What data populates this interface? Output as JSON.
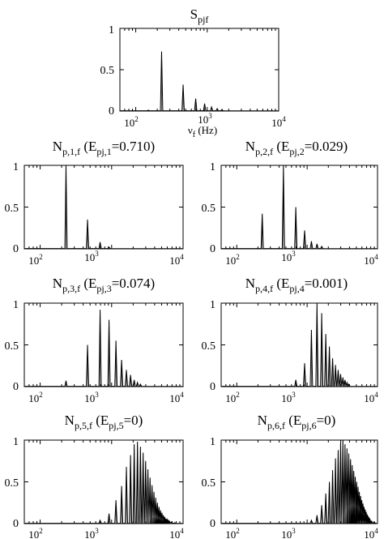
{
  "chart_data": [
    {
      "type": "line",
      "title_main": "S",
      "title_sub": "pjf",
      "title_rest": "",
      "xlabel_main": "ν",
      "xlabel_sub": "f",
      "xlabel_rest": " (Hz)",
      "xscale": "log",
      "xlim": [
        60,
        10000
      ],
      "ylim": [
        0,
        1
      ],
      "xticks": [
        {
          "base": "10",
          "exp": "2"
        },
        {
          "base": "10",
          "exp": "3"
        },
        {
          "base": "10",
          "exp": "4"
        }
      ],
      "yticks": [
        "0",
        "0.5",
        "1"
      ],
      "peaks": [
        {
          "freq": 150,
          "amp": 0.01
        },
        {
          "freq": 230,
          "amp": 0.72
        },
        {
          "freq": 460,
          "amp": 0.32
        },
        {
          "freq": 690,
          "amp": 0.15
        },
        {
          "freq": 920,
          "amp": 0.09
        },
        {
          "freq": 1150,
          "amp": 0.05
        },
        {
          "freq": 1380,
          "amp": 0.03
        },
        {
          "freq": 1610,
          "amp": 0.02
        }
      ]
    },
    {
      "type": "line",
      "title_main": "N",
      "title_sub": "p,1,f",
      "title_rest": " (E",
      "title_sub2": "pj,1",
      "title_end": "=0.710)",
      "xscale": "log",
      "xlim": [
        60,
        10000
      ],
      "ylim": [
        0,
        1
      ],
      "xticks": [
        {
          "base": "10",
          "exp": "2"
        },
        {
          "base": "10",
          "exp": "3"
        },
        {
          "base": "10",
          "exp": "4"
        }
      ],
      "yticks": [
        "0",
        "0.5",
        "1"
      ],
      "peaks": [
        {
          "freq": 230,
          "amp": 1.0
        },
        {
          "freq": 460,
          "amp": 0.35
        },
        {
          "freq": 690,
          "amp": 0.08
        },
        {
          "freq": 920,
          "amp": 0.02
        }
      ]
    },
    {
      "type": "line",
      "title_main": "N",
      "title_sub": "p,2,f",
      "title_rest": " (E",
      "title_sub2": "pj,2",
      "title_end": "=0.029)",
      "xscale": "log",
      "xlim": [
        60,
        10000
      ],
      "ylim": [
        0,
        1
      ],
      "xticks": [
        {
          "base": "10",
          "exp": "2"
        },
        {
          "base": "10",
          "exp": "3"
        },
        {
          "base": "10",
          "exp": "4"
        }
      ],
      "yticks": [
        "0",
        "0.5",
        "1"
      ],
      "peaks": [
        {
          "freq": 230,
          "amp": 0.42
        },
        {
          "freq": 460,
          "amp": 1.0
        },
        {
          "freq": 690,
          "amp": 0.5
        },
        {
          "freq": 920,
          "amp": 0.22
        },
        {
          "freq": 1150,
          "amp": 0.09
        },
        {
          "freq": 1380,
          "amp": 0.06
        },
        {
          "freq": 1610,
          "amp": 0.03
        }
      ]
    },
    {
      "type": "line",
      "title_main": "N",
      "title_sub": "p,3,f",
      "title_rest": " (E",
      "title_sub2": "pj,3",
      "title_end": "=0.074)",
      "xscale": "log",
      "xlim": [
        60,
        10000
      ],
      "ylim": [
        0,
        1
      ],
      "xticks": [
        {
          "base": "10",
          "exp": "2"
        },
        {
          "base": "10",
          "exp": "3"
        },
        {
          "base": "10",
          "exp": "4"
        }
      ],
      "yticks": [
        "0",
        "0.5",
        "1"
      ],
      "peaks": [
        {
          "freq": 230,
          "amp": 0.07
        },
        {
          "freq": 460,
          "amp": 0.5
        },
        {
          "freq": 690,
          "amp": 0.92
        },
        {
          "freq": 920,
          "amp": 0.8
        },
        {
          "freq": 1150,
          "amp": 0.55
        },
        {
          "freq": 1380,
          "amp": 0.32
        },
        {
          "freq": 1610,
          "amp": 0.2
        },
        {
          "freq": 1840,
          "amp": 0.14
        },
        {
          "freq": 2070,
          "amp": 0.08
        },
        {
          "freq": 2300,
          "amp": 0.05
        },
        {
          "freq": 2530,
          "amp": 0.03
        }
      ]
    },
    {
      "type": "line",
      "title_main": "N",
      "title_sub": "p,4,f",
      "title_rest": " (E",
      "title_sub2": "pj,4",
      "title_end": "=0.001)",
      "xscale": "log",
      "xlim": [
        60,
        10000
      ],
      "ylim": [
        0,
        1
      ],
      "xticks": [
        {
          "base": "10",
          "exp": "2"
        },
        {
          "base": "10",
          "exp": "3"
        },
        {
          "base": "10",
          "exp": "4"
        }
      ],
      "yticks": [
        "0",
        "0.5",
        "1"
      ],
      "peaks": [
        {
          "freq": 690,
          "amp": 0.08
        },
        {
          "freq": 920,
          "amp": 0.28
        },
        {
          "freq": 1150,
          "amp": 0.68
        },
        {
          "freq": 1380,
          "amp": 1.0
        },
        {
          "freq": 1610,
          "amp": 0.88
        },
        {
          "freq": 1840,
          "amp": 0.63
        },
        {
          "freq": 2070,
          "amp": 0.48
        },
        {
          "freq": 2300,
          "amp": 0.34
        },
        {
          "freq": 2530,
          "amp": 0.26
        },
        {
          "freq": 2760,
          "amp": 0.2
        },
        {
          "freq": 2990,
          "amp": 0.15
        },
        {
          "freq": 3220,
          "amp": 0.11
        },
        {
          "freq": 3450,
          "amp": 0.08
        },
        {
          "freq": 3680,
          "amp": 0.05
        },
        {
          "freq": 3910,
          "amp": 0.03
        }
      ]
    },
    {
      "type": "line",
      "title_main": "N",
      "title_sub": "p,5,f",
      "title_rest": " (E",
      "title_sub2": "pj,5",
      "title_end": "=0)",
      "xscale": "log",
      "xlim": [
        60,
        10000
      ],
      "ylim": [
        0,
        1
      ],
      "xticks": [
        {
          "base": "10",
          "exp": "2"
        },
        {
          "base": "10",
          "exp": "3"
        },
        {
          "base": "10",
          "exp": "4"
        }
      ],
      "yticks": [
        "0",
        "0.5",
        "1"
      ],
      "peaks": [
        {
          "freq": 690,
          "amp": 0.04
        },
        {
          "freq": 920,
          "amp": 0.12
        },
        {
          "freq": 1150,
          "amp": 0.28
        },
        {
          "freq": 1380,
          "amp": 0.45
        },
        {
          "freq": 1610,
          "amp": 0.68
        },
        {
          "freq": 1840,
          "amp": 0.82
        },
        {
          "freq": 2070,
          "amp": 0.95
        },
        {
          "freq": 2300,
          "amp": 0.98
        },
        {
          "freq": 2530,
          "amp": 0.92
        },
        {
          "freq": 2760,
          "amp": 0.85
        },
        {
          "freq": 2990,
          "amp": 0.75
        },
        {
          "freq": 3220,
          "amp": 0.65
        },
        {
          "freq": 3450,
          "amp": 0.55
        },
        {
          "freq": 3680,
          "amp": 0.46
        },
        {
          "freq": 3910,
          "amp": 0.38
        },
        {
          "freq": 4140,
          "amp": 0.31
        },
        {
          "freq": 4370,
          "amp": 0.25
        },
        {
          "freq": 4600,
          "amp": 0.2
        },
        {
          "freq": 4830,
          "amp": 0.16
        },
        {
          "freq": 5060,
          "amp": 0.13
        },
        {
          "freq": 5290,
          "amp": 0.1
        },
        {
          "freq": 5520,
          "amp": 0.08
        },
        {
          "freq": 5750,
          "amp": 0.06
        },
        {
          "freq": 5980,
          "amp": 0.05
        },
        {
          "freq": 6210,
          "amp": 0.04
        },
        {
          "freq": 6440,
          "amp": 0.03
        },
        {
          "freq": 6900,
          "amp": 0.02
        },
        {
          "freq": 7600,
          "amp": 0.01
        }
      ]
    },
    {
      "type": "line",
      "title_main": "N",
      "title_sub": "p,6,f",
      "title_rest": " (E",
      "title_sub2": "pj,6",
      "title_end": "=0)",
      "xscale": "log",
      "xlim": [
        60,
        10000
      ],
      "ylim": [
        0,
        1
      ],
      "xticks": [
        {
          "base": "10",
          "exp": "2"
        },
        {
          "base": "10",
          "exp": "3"
        },
        {
          "base": "10",
          "exp": "4"
        }
      ],
      "yticks": [
        "0",
        "0.5",
        "1"
      ],
      "peaks": [
        {
          "freq": 1150,
          "amp": 0.04
        },
        {
          "freq": 1380,
          "amp": 0.1
        },
        {
          "freq": 1610,
          "amp": 0.22
        },
        {
          "freq": 1840,
          "amp": 0.36
        },
        {
          "freq": 2070,
          "amp": 0.5
        },
        {
          "freq": 2300,
          "amp": 0.64
        },
        {
          "freq": 2530,
          "amp": 0.78
        },
        {
          "freq": 2760,
          "amp": 0.88
        },
        {
          "freq": 2990,
          "amp": 0.97
        },
        {
          "freq": 3220,
          "amp": 1.0
        },
        {
          "freq": 3450,
          "amp": 0.95
        },
        {
          "freq": 3680,
          "amp": 0.9
        },
        {
          "freq": 3910,
          "amp": 0.84
        },
        {
          "freq": 4140,
          "amp": 0.77
        },
        {
          "freq": 4370,
          "amp": 0.7
        },
        {
          "freq": 4600,
          "amp": 0.63
        },
        {
          "freq": 4830,
          "amp": 0.56
        },
        {
          "freq": 5060,
          "amp": 0.5
        },
        {
          "freq": 5290,
          "amp": 0.44
        },
        {
          "freq": 5520,
          "amp": 0.38
        },
        {
          "freq": 5750,
          "amp": 0.33
        },
        {
          "freq": 5980,
          "amp": 0.28
        },
        {
          "freq": 6210,
          "amp": 0.24
        },
        {
          "freq": 6440,
          "amp": 0.2
        },
        {
          "freq": 6670,
          "amp": 0.17
        },
        {
          "freq": 6900,
          "amp": 0.14
        },
        {
          "freq": 7130,
          "amp": 0.11
        },
        {
          "freq": 7360,
          "amp": 0.09
        },
        {
          "freq": 7590,
          "amp": 0.07
        },
        {
          "freq": 7820,
          "amp": 0.05
        },
        {
          "freq": 8280,
          "amp": 0.03
        },
        {
          "freq": 8970,
          "amp": 0.02
        }
      ]
    }
  ]
}
